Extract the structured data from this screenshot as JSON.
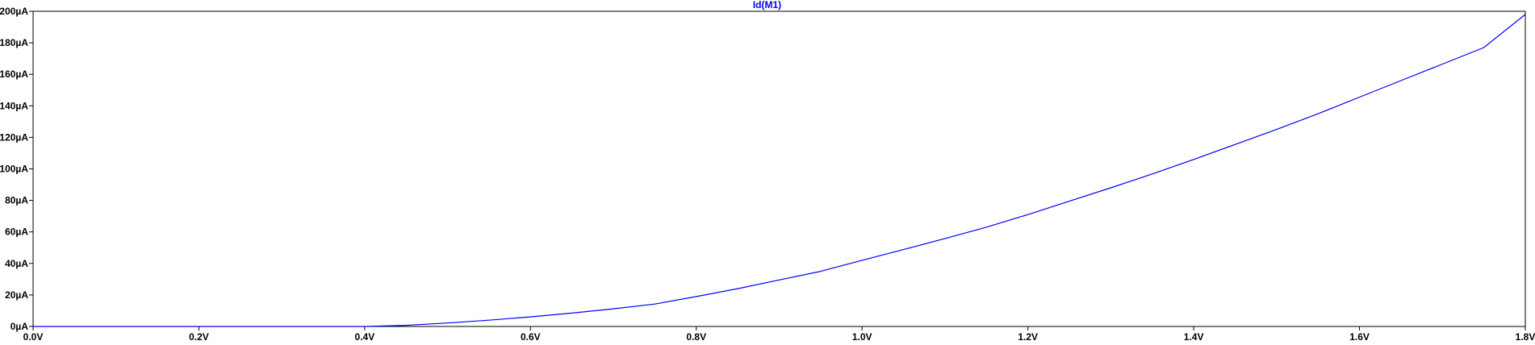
{
  "chart_data": {
    "type": "line",
    "title": "Id(M1)",
    "xlabel": "",
    "ylabel": "",
    "xlim": [
      0,
      1.8
    ],
    "ylim": [
      0,
      200
    ],
    "grid": false,
    "x_ticks": [
      {
        "value": 0.0,
        "label": "0.0V"
      },
      {
        "value": 0.2,
        "label": "0.2V"
      },
      {
        "value": 0.4,
        "label": "0.4V"
      },
      {
        "value": 0.6,
        "label": "0.6V"
      },
      {
        "value": 0.8,
        "label": "0.8V"
      },
      {
        "value": 1.0,
        "label": "1.0V"
      },
      {
        "value": 1.2,
        "label": "1.2V"
      },
      {
        "value": 1.4,
        "label": "1.4V"
      },
      {
        "value": 1.6,
        "label": "1.6V"
      },
      {
        "value": 1.8,
        "label": "1.8V"
      }
    ],
    "y_ticks": [
      {
        "value": 0,
        "label": "0µA"
      },
      {
        "value": 20,
        "label": "20µA"
      },
      {
        "value": 40,
        "label": "40µA"
      },
      {
        "value": 60,
        "label": "60µA"
      },
      {
        "value": 80,
        "label": "80µA"
      },
      {
        "value": 100,
        "label": "100µA"
      },
      {
        "value": 120,
        "label": "120µA"
      },
      {
        "value": 140,
        "label": "140µA"
      },
      {
        "value": 160,
        "label": "160µA"
      },
      {
        "value": 180,
        "label": "180µA"
      },
      {
        "value": 200,
        "label": "200µA"
      }
    ],
    "series": [
      {
        "name": "Id(M1)",
        "color": "#0000ff",
        "x": [
          0.0,
          0.1,
          0.2,
          0.3,
          0.4,
          0.45,
          0.5,
          0.55,
          0.6,
          0.65,
          0.7,
          0.75,
          0.8,
          0.85,
          0.9,
          0.95,
          1.0,
          1.05,
          1.1,
          1.15,
          1.2,
          1.25,
          1.3,
          1.35,
          1.4,
          1.45,
          1.5,
          1.55,
          1.6,
          1.65,
          1.7,
          1.75,
          1.8
        ],
        "y": [
          0,
          0,
          0,
          0,
          0,
          0.7,
          2.2,
          4.0,
          6.1,
          8.5,
          11.2,
          14.2,
          19.0,
          24.0,
          29.5,
          35.0,
          42.0,
          48.8,
          55.8,
          63.0,
          71.0,
          79.5,
          88.0,
          96.8,
          106.0,
          115.5,
          125.0,
          135.0,
          145.5,
          156.0,
          166.5,
          177.0,
          198.0
        ]
      }
    ]
  },
  "colors": {
    "trace": "#0000ff",
    "axis": "#000000",
    "background": "#ffffff"
  }
}
